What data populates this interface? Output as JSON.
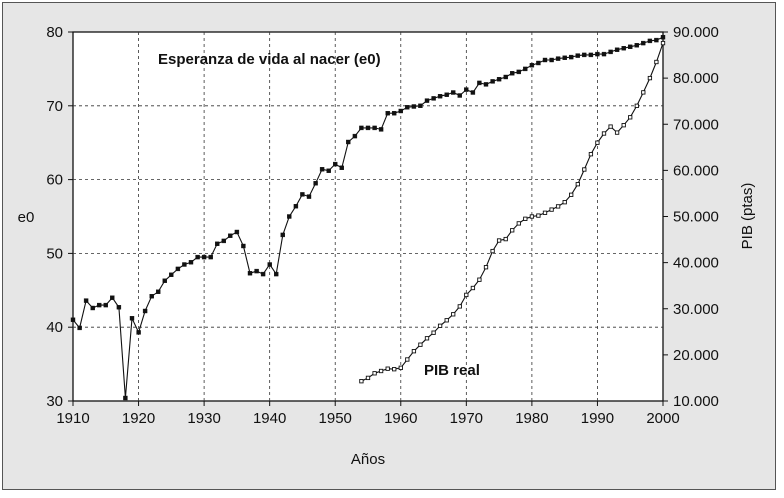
{
  "chart_data": {
    "type": "line",
    "title": "",
    "xlabel": "Años",
    "ylabel": "e0",
    "y2label": "PIB (ptas)",
    "xlim": [
      1910,
      2000
    ],
    "ylim": [
      30,
      80
    ],
    "y2lim": [
      10000,
      90000
    ],
    "x_ticks": [
      "1910",
      "1920",
      "1930",
      "1940",
      "1950",
      "1960",
      "1970",
      "1980",
      "1990",
      "2000"
    ],
    "y_ticks": [
      "30",
      "40",
      "50",
      "60",
      "70",
      "80"
    ],
    "y2_ticks": [
      "10.000",
      "20.000",
      "30.000",
      "40.000",
      "50.000",
      "60.000",
      "70.000",
      "80.000",
      "90.000"
    ],
    "grid": true,
    "annotations": [
      {
        "text": "Esperanza de vida al nacer (e0)",
        "series": "e0"
      },
      {
        "text": "PIB real",
        "series": "pib"
      }
    ],
    "series": [
      {
        "id": "e0",
        "axis": "left",
        "color": "#111111",
        "marker": "filled-square",
        "x": [
          1910,
          1911,
          1912,
          1913,
          1914,
          1915,
          1916,
          1917,
          1918,
          1919,
          1920,
          1921,
          1922,
          1923,
          1924,
          1925,
          1926,
          1927,
          1928,
          1929,
          1930,
          1931,
          1932,
          1933,
          1934,
          1935,
          1936,
          1937,
          1938,
          1939,
          1940,
          1941,
          1942,
          1943,
          1944,
          1945,
          1946,
          1947,
          1948,
          1949,
          1950,
          1951,
          1952,
          1953,
          1954,
          1955,
          1956,
          1957,
          1958,
          1959,
          1960,
          1961,
          1962,
          1963,
          1964,
          1965,
          1966,
          1967,
          1968,
          1969,
          1970,
          1971,
          1972,
          1973,
          1974,
          1975,
          1976,
          1977,
          1978,
          1979,
          1980,
          1981,
          1982,
          1983,
          1984,
          1985,
          1986,
          1987,
          1988,
          1989,
          1990,
          1991,
          1992,
          1993,
          1994,
          1995,
          1996,
          1997,
          1998,
          1999,
          2000
        ],
        "values": [
          41,
          39.9,
          43.6,
          42.6,
          43,
          43,
          44,
          42.7,
          30.4,
          41.2,
          39.3,
          42.2,
          44.2,
          44.8,
          46.3,
          47.1,
          47.9,
          48.5,
          48.8,
          49.5,
          49.5,
          49.5,
          51.3,
          51.7,
          52.4,
          52.9,
          51,
          47.3,
          47.6,
          47.2,
          48.5,
          47.2,
          52.5,
          55,
          56.4,
          58,
          57.7,
          59.5,
          61.4,
          61.2,
          62.1,
          61.6,
          65.1,
          65.9,
          67,
          67,
          67,
          66.8,
          69,
          69,
          69.3,
          69.8,
          69.9,
          70,
          70.7,
          71,
          71.3,
          71.5,
          71.8,
          71.4,
          72.2,
          71.8,
          73.1,
          72.9,
          73.3,
          73.6,
          73.9,
          74.4,
          74.6,
          75,
          75.5,
          75.8,
          76.2,
          76.2,
          76.4,
          76.5,
          76.6,
          76.8,
          76.9,
          76.9,
          77,
          77,
          77.3,
          77.6,
          77.8,
          78,
          78.2,
          78.5,
          78.8,
          78.9,
          79.3
        ]
      },
      {
        "id": "pib",
        "axis": "right",
        "color": "#111111",
        "marker": "open-square",
        "x": [
          1954,
          1955,
          1956,
          1957,
          1958,
          1959,
          1960,
          1961,
          1962,
          1963,
          1964,
          1965,
          1966,
          1967,
          1968,
          1969,
          1970,
          1971,
          1972,
          1973,
          1974,
          1975,
          1976,
          1977,
          1978,
          1979,
          1980,
          1981,
          1982,
          1983,
          1984,
          1985,
          1986,
          1987,
          1988,
          1989,
          1990,
          1991,
          1992,
          1993,
          1994,
          1995,
          1996,
          1997,
          1998,
          1999,
          2000
        ],
        "values": [
          14300,
          15000,
          16000,
          16500,
          17000,
          16900,
          17200,
          19000,
          20800,
          22200,
          23600,
          24800,
          26300,
          27500,
          28800,
          30500,
          33000,
          34500,
          36300,
          39000,
          42500,
          44800,
          45100,
          47000,
          48500,
          49500,
          50000,
          50200,
          50800,
          51500,
          52200,
          53100,
          54700,
          57000,
          60200,
          63500,
          66000,
          68000,
          69500,
          68200,
          69800,
          71500,
          74000,
          76900,
          80000,
          83500,
          87600
        ]
      }
    ]
  }
}
